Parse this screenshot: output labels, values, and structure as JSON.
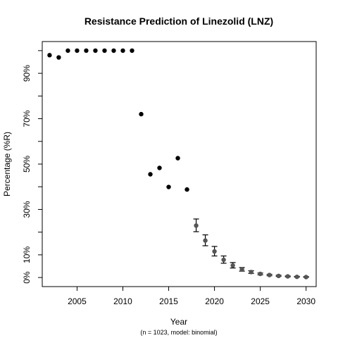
{
  "chart_data": {
    "type": "scatter",
    "title": "Resistance Prediction of Linezolid (LNZ)",
    "xlabel": "Year",
    "ylabel": "Percentage (%R)",
    "caption": "(n = 1023, model: binomial)",
    "xlim": [
      2001.2,
      2031.1
    ],
    "ylim": [
      -4,
      104
    ],
    "x_ticks": [
      2005,
      2010,
      2015,
      2020,
      2025,
      2030
    ],
    "x_tick_labels": [
      "2005",
      "2010",
      "2015",
      "2020",
      "2025",
      "2030"
    ],
    "y_ticks": [
      0,
      10,
      20,
      30,
      40,
      50,
      60,
      70,
      80,
      90,
      100
    ],
    "y_tick_labels": [
      {
        "value": 0,
        "label": "0%"
      },
      {
        "value": 10,
        "label": "10%"
      },
      {
        "value": 30,
        "label": "30%"
      },
      {
        "value": 50,
        "label": "50%"
      },
      {
        "value": 70,
        "label": "70%"
      },
      {
        "value": 90,
        "label": "90%"
      }
    ],
    "grid": false,
    "colors": {
      "observed": "#000000",
      "predicted": "#555555",
      "errorbar": "#000000"
    },
    "series": [
      {
        "kind": "observed",
        "x": [
          2002,
          2003,
          2004,
          2005,
          2006,
          2007,
          2008,
          2009,
          2010,
          2011,
          2012,
          2013,
          2014,
          2015,
          2016,
          2017
        ],
        "y": [
          98.0,
          97.0,
          100,
          100,
          100,
          100,
          100,
          100,
          100,
          100,
          72.0,
          45.5,
          48.3,
          39.9,
          52.6,
          38.8
        ]
      },
      {
        "kind": "predicted",
        "x": [
          2018,
          2019,
          2020,
          2021,
          2022,
          2023,
          2024,
          2025,
          2026,
          2027,
          2028,
          2029,
          2030
        ],
        "y": [
          22.9,
          16.3,
          11.5,
          7.8,
          5.3,
          3.5,
          2.4,
          1.6,
          1.1,
          0.7,
          0.5,
          0.3,
          0.2
        ],
        "lower": [
          20.2,
          14.0,
          9.5,
          6.3,
          4.2,
          2.8,
          1.8,
          1.2,
          0.8,
          0.5,
          0.3,
          0.2,
          0.1
        ],
        "upper": [
          25.8,
          18.8,
          13.7,
          9.5,
          6.6,
          4.4,
          3.0,
          2.0,
          1.4,
          1.0,
          0.7,
          0.5,
          0.4
        ]
      }
    ]
  }
}
